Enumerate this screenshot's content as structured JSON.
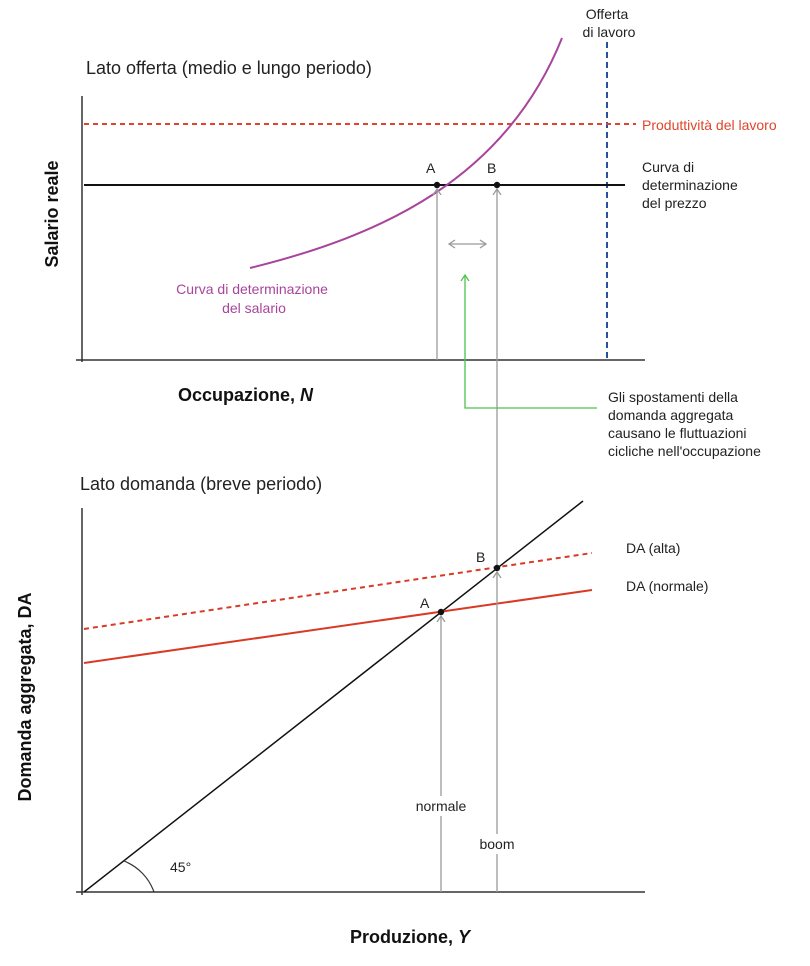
{
  "top_panel": {
    "title": "Lato offerta (medio e lungo periodo)",
    "y_axis_label": "Salario reale",
    "x_axis_label_text": "Occupazione, ",
    "x_axis_label_var": "N",
    "labour_supply_label": [
      "Offerta",
      "di lavoro"
    ],
    "productivity_label": "Produttività del lavoro",
    "price_setting_label": [
      "Curva di",
      "determinazione",
      "del prezzo"
    ],
    "wage_setting_label": [
      "Curva di determinazione",
      "del salario"
    ],
    "point_a": "A",
    "point_b": "B"
  },
  "annotation": {
    "lines": [
      "Gli spostamenti della",
      "domanda aggregata",
      "causano le fluttuazioni",
      "cicliche nell'occupazione"
    ]
  },
  "bottom_panel": {
    "title": "Lato domanda (breve periodo)",
    "y_axis_label": "Domanda aggregata, DA",
    "x_axis_label_text": "Produzione, ",
    "x_axis_label_var": "Y",
    "ad_high_label": "DA (alta)",
    "ad_normal_label": "DA (normale)",
    "point_a": "A",
    "point_b": "B",
    "normal_label": "normale",
    "boom_label": "boom",
    "angle_label": "45°"
  },
  "colors": {
    "axis": "#333333",
    "price_setting": "#111111",
    "productivity": "#e0452b",
    "labour_supply": "#2a4f9e",
    "wage_setting": "#a8449c",
    "guide_arrows": "#9a9a9a",
    "annotation": "#4cc44c",
    "ad_curves": "#d93a26"
  }
}
